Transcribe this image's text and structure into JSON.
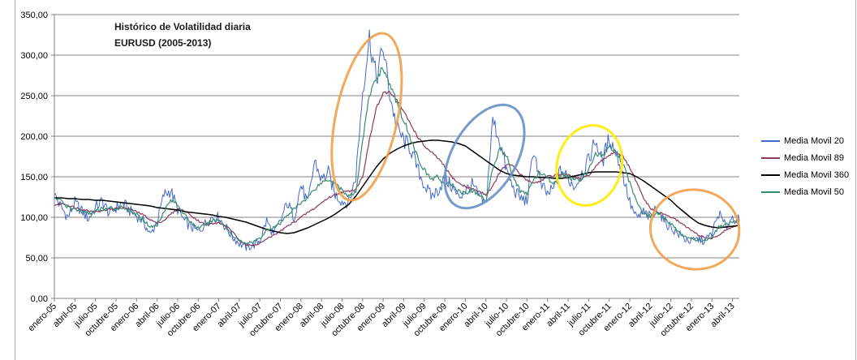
{
  "chart_data": {
    "type": "line",
    "title_line1": "Histórico de Volatilidad diaria",
    "title_line2": "EURUSD (2005-2013)",
    "ylim": [
      0,
      350
    ],
    "grid": "horizontal",
    "legend_position": "right",
    "y_ticks": [
      {
        "value": 0,
        "label": "0,00"
      },
      {
        "value": 50,
        "label": "50,00"
      },
      {
        "value": 100,
        "label": "100,00"
      },
      {
        "value": 150,
        "label": "150,00"
      },
      {
        "value": 200,
        "label": "200,00"
      },
      {
        "value": 250,
        "label": "250,00"
      },
      {
        "value": 300,
        "label": "300,00"
      },
      {
        "value": 350,
        "label": "350,00"
      }
    ],
    "months_per_tick": 3,
    "x_tick_labels": [
      "enero-05",
      "abril-05",
      "julio-05",
      "octubre-05",
      "enero-06",
      "abril-06",
      "julio-06",
      "octubre-06",
      "enero-07",
      "abril-07",
      "julio-07",
      "octubre-07",
      "enero-08",
      "abril-08",
      "julio-08",
      "octubre-08",
      "enero-09",
      "abril-09",
      "julio-09",
      "octubre-09",
      "enero-10",
      "abril-10",
      "julio-10",
      "octubre-10",
      "enero-11",
      "abril-11",
      "julio-11",
      "octubre-11",
      "enero-12",
      "abril-12",
      "julio-12",
      "octubre-12",
      "enero-13",
      "abril-13"
    ],
    "series": [
      {
        "name": "Media Movil 20",
        "color": "#4569c8",
        "jitter": 6,
        "values": [
          128,
          112,
          100,
          118,
          108,
          98,
          112,
          120,
          105,
          112,
          118,
          108,
          102,
          95,
          78,
          95,
          128,
          133,
          110,
          95,
          88,
          82,
          92,
          100,
          100,
          88,
          76,
          68,
          63,
          65,
          72,
          96,
          78,
          95,
          118,
          100,
          140,
          116,
          170,
          146,
          155,
          128,
          120,
          118,
          150,
          255,
          322,
          270,
          310,
          250,
          210,
          195,
          185,
          160,
          140,
          126,
          133,
          148,
          138,
          124,
          133,
          140,
          126,
          115,
          220,
          195,
          158,
          135,
          124,
          120,
          185,
          140,
          128,
          136,
          160,
          147,
          138,
          155,
          170,
          196,
          168,
          198,
          180,
          153,
          118,
          98,
          106,
          100,
          113,
          95,
          88,
          80,
          74,
          70,
          73,
          71,
          80,
          105,
          88,
          100,
          96
        ]
      },
      {
        "name": "Media Movil 89",
        "color": "#8b3a5f",
        "jitter": 1,
        "values": [
          115,
          117,
          115,
          112,
          110,
          108,
          107,
          108,
          110,
          111,
          112,
          110,
          107,
          103,
          97,
          93,
          96,
          104,
          110,
          108,
          102,
          96,
          91,
          92,
          93,
          90,
          82,
          72,
          66,
          65,
          68,
          73,
          78,
          83,
          89,
          94,
          100,
          106,
          111,
          118,
          124,
          128,
          131,
          132,
          135,
          150,
          195,
          235,
          252,
          255,
          245,
          230,
          215,
          200,
          188,
          180,
          173,
          162,
          150,
          142,
          138,
          135,
          132,
          128,
          138,
          155,
          165,
          163,
          153,
          146,
          142,
          145,
          150,
          152,
          153,
          152,
          149,
          147,
          152,
          162,
          170,
          177,
          181,
          175,
          161,
          143,
          124,
          111,
          106,
          104,
          100,
          96,
          90,
          84,
          78,
          75,
          74,
          78,
          84,
          88,
          90
        ]
      },
      {
        "name": "Media Movil 360",
        "color": "#000000",
        "jitter": 0,
        "values": [
          124,
          124,
          123,
          123,
          122,
          122,
          121,
          121,
          120,
          119,
          118,
          117,
          116,
          115,
          114,
          112,
          111,
          110,
          109,
          107,
          106,
          105,
          104,
          103,
          101,
          100,
          98,
          96,
          94,
          91,
          88,
          85,
          83,
          81,
          80,
          81,
          84,
          87,
          91,
          95,
          99,
          104,
          110,
          116,
          126,
          138,
          150,
          162,
          172,
          179,
          184,
          188,
          191,
          193,
          194,
          195,
          195,
          194,
          193,
          191,
          188,
          182,
          176,
          170,
          164,
          158,
          154,
          152,
          151,
          150,
          150,
          149,
          149,
          148,
          148,
          149,
          151,
          153,
          155,
          156,
          156,
          156,
          156,
          155,
          154,
          150,
          145,
          139,
          133,
          127,
          121,
          113,
          106,
          99,
          93,
          90,
          88,
          87,
          88,
          89,
          90
        ]
      },
      {
        "name": "Media Movil 50",
        "color": "#378c6e",
        "jitter": 2,
        "values": [
          125,
          120,
          112,
          110,
          107,
          105,
          107,
          111,
          110,
          111,
          113,
          108,
          103,
          97,
          88,
          90,
          108,
          121,
          116,
          103,
          93,
          87,
          90,
          96,
          97,
          88,
          78,
          71,
          68,
          69,
          74,
          84,
          88,
          92,
          103,
          110,
          118,
          125,
          135,
          143,
          147,
          143,
          133,
          126,
          130,
          195,
          250,
          272,
          285,
          262,
          242,
          220,
          198,
          175,
          158,
          147,
          150,
          140,
          141,
          132,
          130,
          133,
          128,
          119,
          160,
          186,
          176,
          150,
          133,
          128,
          148,
          155,
          148,
          142,
          152,
          150,
          145,
          148,
          158,
          178,
          175,
          188,
          182,
          166,
          143,
          120,
          105,
          101,
          105,
          100,
          92,
          83,
          77,
          73,
          72,
          72,
          75,
          88,
          90,
          93,
          96
        ]
      }
    ],
    "legend_items": [
      "Media Movil 20",
      "Media Movil 89",
      "Media Movil 360",
      "Media Movil 50"
    ],
    "annotations": [
      {
        "shape": "ellipse",
        "color": "#f0a24e",
        "center_month": 45.6,
        "center_value": 224,
        "rx_months": 4.5,
        "ry_values": 105,
        "rotation_deg": 12
      },
      {
        "shape": "ellipse",
        "color": "#6991c8",
        "center_month": 62.8,
        "center_value": 175,
        "rx_months": 4.7,
        "ry_values": 70,
        "rotation_deg": 30
      },
      {
        "shape": "ellipse",
        "color": "#ffeb00",
        "center_month": 78.1,
        "center_value": 164,
        "rx_months": 4.7,
        "ry_values": 50,
        "rotation_deg": 15
      },
      {
        "shape": "ellipse",
        "color": "#f0a24e",
        "center_month": 93.5,
        "center_value": 85,
        "rx_months": 6.5,
        "ry_values": 49,
        "rotation_deg": 8
      }
    ],
    "axis_color": "#808080",
    "label_color": "#000000"
  }
}
